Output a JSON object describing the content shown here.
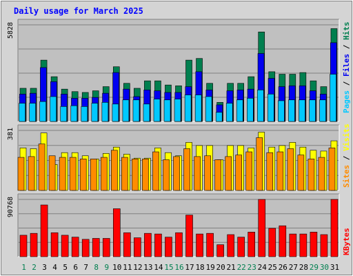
{
  "title": "Daily usage for March 2025",
  "colors": {
    "hits": "#007f4f",
    "files": "#0000f0",
    "pages": "#00c8ff",
    "visits": "#ffff00",
    "sites": "#ff8c00",
    "kbytes": "#ff0000",
    "weekend_label": "#007f4f",
    "weekday_label": "#000000",
    "title": "#0000ff",
    "plot_bg": "#c0c0c0",
    "page_bg": "#d4d4d4"
  },
  "legend": {
    "pages": "Pages",
    "files": "Files",
    "hits": "Hits",
    "sites": "Sites",
    "visits": "Visits",
    "kbytes": "KBytes",
    "sep": " / "
  },
  "chart_data": [
    {
      "type": "bar",
      "panel": "hits-files-pages",
      "ymax_label": "5828",
      "ylim": [
        0,
        5828
      ],
      "categories": [
        "1",
        "2",
        "3",
        "4",
        "5",
        "6",
        "7",
        "8",
        "9",
        "10",
        "11",
        "12",
        "13",
        "14",
        "15",
        "16",
        "17",
        "18",
        "19",
        "20",
        "21",
        "22",
        "23",
        "24",
        "25",
        "26",
        "27",
        "28",
        "29",
        "30",
        "31"
      ],
      "weekends": [
        "1",
        "2",
        "8",
        "9",
        "15",
        "16",
        "22",
        "23",
        "29",
        "30"
      ],
      "series": [
        {
          "name": "Hits",
          "values": [
            2000,
            2000,
            3700,
            2700,
            1950,
            1800,
            1750,
            1850,
            2100,
            3300,
            2300,
            2000,
            2450,
            2450,
            2200,
            2150,
            3700,
            3800,
            2300,
            1150,
            2300,
            2300,
            2700,
            5400,
            3000,
            2850,
            2850,
            2950,
            2450,
            2100,
            5600
          ]
        },
        {
          "name": "Files",
          "values": [
            1650,
            1700,
            3250,
            2400,
            1650,
            1400,
            1400,
            1450,
            1700,
            2950,
            1950,
            1500,
            1900,
            1850,
            1750,
            1750,
            2100,
            3000,
            1900,
            1000,
            1850,
            1900,
            1950,
            4100,
            2600,
            2100,
            2150,
            2150,
            1850,
            1650,
            4750
          ]
        },
        {
          "name": "Pages",
          "values": [
            1100,
            1100,
            1200,
            1500,
            900,
            950,
            900,
            1100,
            1150,
            1050,
            1300,
            1300,
            1050,
            1350,
            1300,
            1350,
            1600,
            1600,
            1500,
            550,
            1100,
            1300,
            1400,
            1900,
            1650,
            1250,
            1300,
            1300,
            1300,
            1300,
            2850
          ]
        }
      ]
    },
    {
      "type": "bar",
      "panel": "visits-sites",
      "ymax_label": "381",
      "ylim": [
        0,
        381
      ],
      "series": [
        {
          "name": "Visits",
          "values": [
            270,
            265,
            365,
            165,
            240,
            240,
            220,
            200,
            235,
            275,
            230,
            205,
            205,
            270,
            240,
            220,
            305,
            285,
            285,
            195,
            285,
            285,
            270,
            370,
            275,
            285,
            305,
            275,
            255,
            250,
            315
          ]
        },
        {
          "name": "Sites",
          "values": [
            210,
            215,
            295,
            220,
            210,
            210,
            200,
            200,
            210,
            255,
            210,
            200,
            200,
            245,
            195,
            215,
            265,
            215,
            220,
            195,
            215,
            225,
            245,
            335,
            240,
            245,
            265,
            225,
            200,
            210,
            270
          ]
        }
      ]
    },
    {
      "type": "bar",
      "panel": "kbytes",
      "ymax_label": "90768",
      "ylim": [
        0,
        90768
      ],
      "series": [
        {
          "name": "KBytes",
          "values": [
            34000,
            37000,
            82000,
            38000,
            34000,
            31000,
            27500,
            29000,
            29000,
            76000,
            38000,
            30000,
            37000,
            36000,
            31000,
            38000,
            66000,
            36000,
            37000,
            19000,
            35000,
            31000,
            39000,
            90768,
            45000,
            49000,
            36000,
            36000,
            39000,
            35000,
            90768
          ]
        }
      ]
    }
  ]
}
